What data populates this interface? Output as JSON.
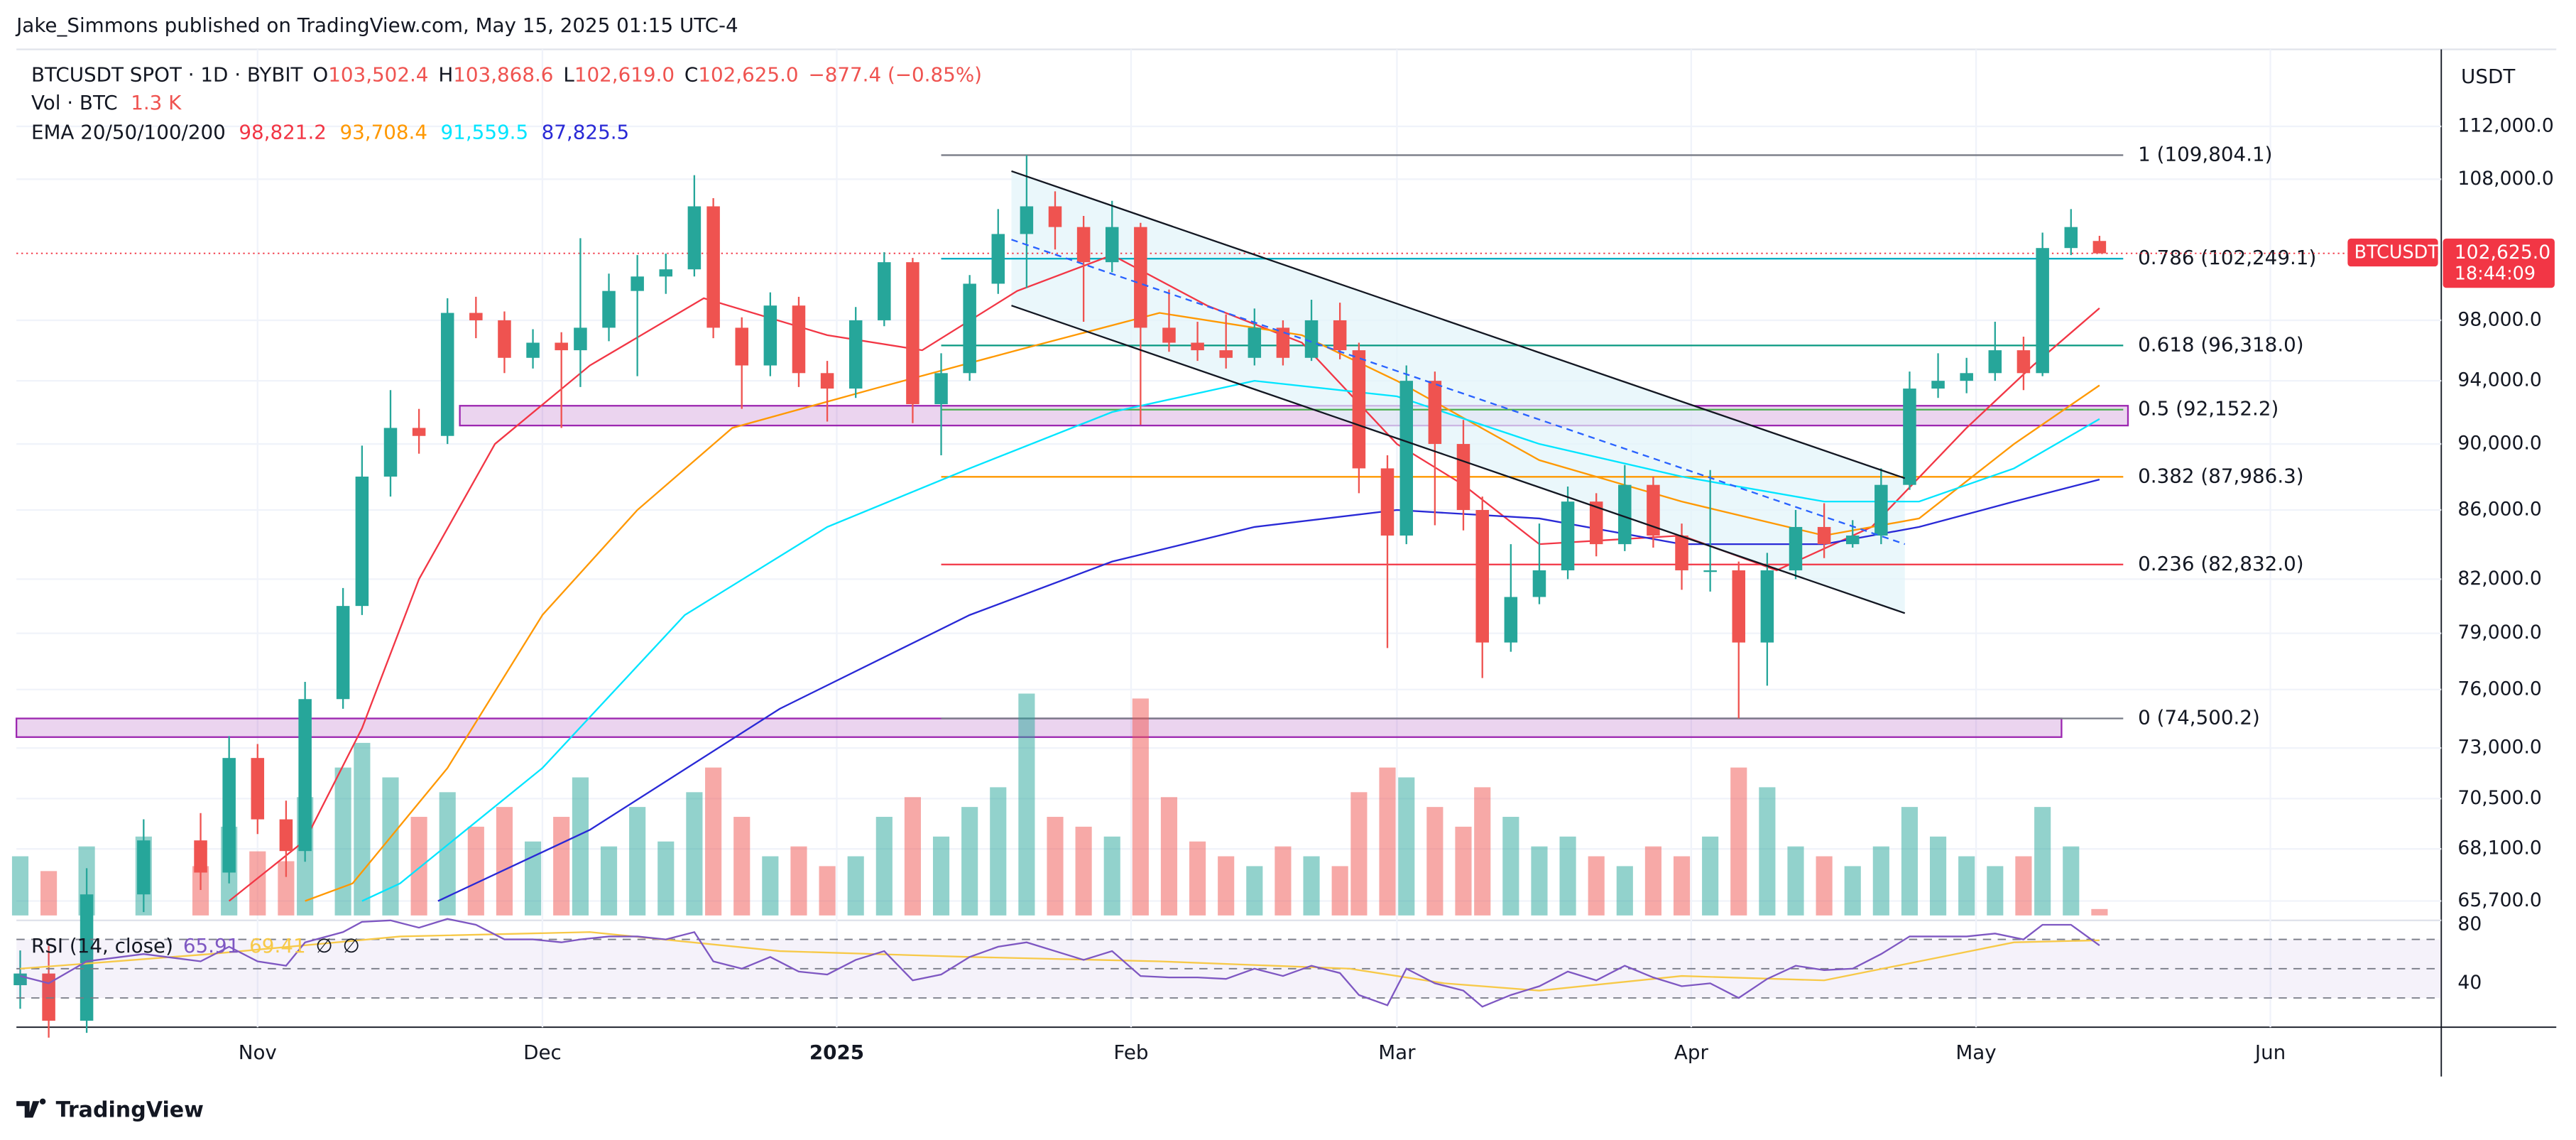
{
  "header": {
    "publisher": "Jake_Simmons published on TradingView.com, May 15, 2025 01:15 UTC-4",
    "brand": "TradingView"
  },
  "chart_data": {
    "type": "candlestick",
    "symbol": "BTCUSDT SPOT · 1D · BYBIT",
    "ohlc_legend": [
      {
        "key": "O",
        "text": "103,502.4"
      },
      {
        "key": "H",
        "text": "103,868.6"
      },
      {
        "key": "L",
        "text": "102,619.0"
      },
      {
        "key": "C",
        "text": "102,625.0"
      }
    ],
    "change": "−877.4 (−0.85%)",
    "volume_legend": {
      "label": "Vol · BTC",
      "text": "1.3 K"
    },
    "ema_legend": "EMA 20/50/100/200",
    "currency": "USDT",
    "up_color": "#26a69a",
    "down_color": "#ef5350",
    "x": [
      0,
      3,
      7,
      13,
      19,
      22,
      25,
      28,
      30,
      34,
      36,
      39,
      42,
      45,
      48,
      51,
      54,
      57,
      59,
      62,
      65,
      68,
      71,
      73,
      76,
      79,
      82,
      85,
      88,
      91,
      94,
      97,
      100,
      103,
      106,
      109,
      112,
      115,
      118,
      121,
      124,
      127,
      130,
      133,
      136,
      139,
      141,
      144,
      146,
      149,
      152,
      154,
      157,
      160,
      163,
      166,
      169,
      172,
      175,
      178,
      181,
      184,
      187,
      190,
      193,
      196,
      199,
      202,
      205,
      208,
      211,
      213,
      216,
      219
    ],
    "open": [
      62000,
      62500,
      60500,
      66000,
      68500,
      67000,
      72500,
      69500,
      68000,
      75500,
      80500,
      88000,
      91000,
      90500,
      98500,
      98000,
      95500,
      96500,
      96000,
      97500,
      100000,
      101000,
      101500,
      106000,
      97500,
      95000,
      99000,
      94500,
      93500,
      98000,
      102000,
      92500,
      94500,
      100500,
      104000,
      106000,
      104500,
      102000,
      104500,
      97500,
      96500,
      96000,
      95500,
      97500,
      95500,
      98000,
      96000,
      88500,
      84500,
      94000,
      90000,
      86000,
      78500,
      81000,
      82500,
      86500,
      84000,
      87500,
      84500,
      82500,
      82500,
      78500,
      82500,
      85000,
      84000,
      84500,
      87500,
      93500,
      94000,
      94500,
      96000,
      94500,
      103000,
      103502.4
    ],
    "high": [
      63500,
      63700,
      67200,
      69500,
      69800,
      73600,
      73200,
      70400,
      76400,
      81500,
      89900,
      93400,
      92200,
      99500,
      99600,
      98600,
      97400,
      97200,
      103700,
      101200,
      102500,
      102600,
      108300,
      106600,
      98200,
      99900,
      99600,
      95300,
      98900,
      102700,
      102300,
      95800,
      101100,
      105800,
      109800,
      107100,
      105300,
      106400,
      104800,
      100100,
      97900,
      98400,
      98800,
      98000,
      99400,
      99200,
      96500,
      89300,
      95000,
      94600,
      91500,
      86800,
      84000,
      85200,
      87400,
      87000,
      88700,
      88000,
      85200,
      88400,
      83000,
      83500,
      86000,
      86400,
      85400,
      88500,
      94600,
      95800,
      95500,
      97900,
      96900,
      104100,
      105800,
      103868.6
    ],
    "low": [
      61000,
      59800,
      60000,
      65200,
      66200,
      66500,
      68800,
      66800,
      67500,
      75000,
      80000,
      86800,
      89400,
      90000,
      96800,
      94500,
      94800,
      91000,
      93600,
      96600,
      94300,
      99800,
      101000,
      96800,
      92200,
      94300,
      93600,
      91400,
      92900,
      97600,
      91300,
      89300,
      94000,
      99800,
      100200,
      102900,
      97900,
      101300,
      91200,
      95900,
      95300,
      94800,
      95000,
      95000,
      95300,
      95400,
      87000,
      78200,
      84000,
      85100,
      84800,
      76600,
      78000,
      80600,
      82000,
      83300,
      83600,
      83800,
      81400,
      81300,
      74500,
      76200,
      82000,
      83200,
      83800,
      84000,
      87200,
      92900,
      93200,
      94000,
      93400,
      94300,
      102500,
      102619
    ],
    "close": [
      62500,
      60500,
      66000,
      68500,
      67000,
      72500,
      69500,
      68000,
      75500,
      80500,
      88000,
      91000,
      90500,
      98500,
      98000,
      95500,
      96500,
      96000,
      97500,
      100000,
      101000,
      101500,
      106000,
      97500,
      95000,
      99000,
      94500,
      93500,
      98000,
      102000,
      92500,
      94500,
      100500,
      104000,
      106000,
      104500,
      102000,
      104500,
      97500,
      96500,
      96000,
      95500,
      97500,
      95500,
      98000,
      96000,
      88500,
      84500,
      94000,
      90000,
      86000,
      78500,
      81000,
      82500,
      86500,
      84000,
      87500,
      84500,
      82500,
      82500,
      78500,
      82500,
      85000,
      84000,
      84500,
      87500,
      93500,
      94000,
      94500,
      96000,
      94500,
      103000,
      104500,
      102625
    ],
    "volume": [
      12,
      9,
      14,
      16,
      10,
      18,
      13,
      11,
      24,
      30,
      35,
      28,
      20,
      25,
      18,
      22,
      15,
      20,
      28,
      14,
      22,
      15,
      25,
      30,
      20,
      12,
      14,
      10,
      12,
      20,
      24,
      16,
      22,
      26,
      45,
      20,
      18,
      16,
      44,
      24,
      15,
      12,
      10,
      14,
      12,
      10,
      25,
      30,
      28,
      22,
      18,
      26,
      20,
      14,
      16,
      12,
      10,
      14,
      12,
      16,
      30,
      26,
      14,
      12,
      10,
      14,
      22,
      16,
      12,
      10,
      12,
      22,
      14,
      1.3
    ],
    "xlim": [
      -0.4,
      255
    ],
    "xticks": [
      {
        "value": 25,
        "label": "Nov"
      },
      {
        "value": 55,
        "label": "Dec"
      },
      {
        "value": 86,
        "label": "2025"
      },
      {
        "value": 117,
        "label": "Feb"
      },
      {
        "value": 145,
        "label": "Mar"
      },
      {
        "value": 176,
        "label": "Apr"
      },
      {
        "value": 206,
        "label": "May"
      },
      {
        "value": 237,
        "label": "Jun"
      }
    ],
    "ylim": [
      65050,
      118100
    ],
    "log_scale": true,
    "grid": true,
    "yticks": [
      {
        "value": 112000,
        "label": "112,000.0"
      },
      {
        "value": 108000,
        "label": "108,000.0"
      },
      {
        "value": 98000,
        "label": "98,000.0"
      },
      {
        "value": 94000,
        "label": "94,000.0"
      },
      {
        "value": 90000,
        "label": "90,000.0"
      },
      {
        "value": 86000,
        "label": "86,000.0"
      },
      {
        "value": 82000,
        "label": "82,000.0"
      },
      {
        "value": 79000,
        "label": "79,000.0"
      },
      {
        "value": 76000,
        "label": "76,000.0"
      },
      {
        "value": 73000,
        "label": "73,000.0"
      },
      {
        "value": 70500,
        "label": "70,500.0"
      },
      {
        "value": 68100,
        "label": "68,100.0"
      },
      {
        "value": 65700,
        "label": "65,700.0"
      }
    ],
    "ema": [
      {
        "color": "#f23645",
        "value_label": "98,821.2",
        "x": [
          22,
          30,
          36,
          42,
          50,
          60,
          72,
          85,
          95,
          105,
          115,
          125,
          135,
          145,
          152,
          160,
          175,
          185,
          195,
          205,
          212,
          219
        ],
        "values": [
          65700,
          68500,
          74000,
          82000,
          90000,
          95000,
          99500,
          97000,
          96000,
          100000,
          102500,
          99000,
          96500,
          90000,
          87500,
          84000,
          84500,
          82500,
          85000,
          91000,
          95000,
          98821.2
        ]
      },
      {
        "color": "#ff9800",
        "value_label": "93,708.4",
        "x": [
          30,
          35,
          45,
          55,
          65,
          75,
          90,
          105,
          120,
          135,
          145,
          160,
          175,
          190,
          200,
          210,
          219
        ],
        "values": [
          65700,
          66500,
          72000,
          80000,
          86000,
          91000,
          93500,
          96000,
          98500,
          97000,
          94000,
          89000,
          86500,
          84500,
          85500,
          90000,
          93708.4
        ]
      },
      {
        "color": "#00e5ff",
        "value_label": "91,559.5",
        "x": [
          36,
          40,
          55,
          70,
          85,
          100,
          115,
          130,
          145,
          160,
          175,
          190,
          200,
          210,
          219
        ],
        "values": [
          65700,
          66500,
          72000,
          80000,
          85000,
          88500,
          92000,
          94000,
          93000,
          90000,
          88000,
          86500,
          86500,
          88500,
          91559.5
        ]
      },
      {
        "color": "#2929d6",
        "value_label": "87,825.5",
        "x": [
          44,
          60,
          80,
          100,
          115,
          130,
          145,
          160,
          175,
          190,
          200,
          210,
          219
        ],
        "values": [
          65700,
          69000,
          75000,
          80000,
          83000,
          85000,
          86000,
          85500,
          84000,
          84000,
          85000,
          86500,
          87825.5
        ]
      }
    ],
    "last_price": {
      "symbol": "BTCUSDT",
      "label": "102,625.0",
      "countdown": "18:44:09",
      "color": "#f23645"
    },
    "fib_range": [
      97,
      221.5
    ],
    "fib": [
      {
        "value": 109804.1,
        "label": "1 (109,804.1)",
        "color": "#787b86"
      },
      {
        "value": 102249.1,
        "label": "0.786 (102,249.1)",
        "color": "#00acc1"
      },
      {
        "value": 96318.0,
        "label": "0.618 (96,318.0)",
        "color": "#089981"
      },
      {
        "value": 92152.2,
        "label": "0.5 (92,152.2)",
        "color": "#4caf50"
      },
      {
        "value": 87986.3,
        "label": "0.382 (87,986.3)",
        "color": "#ff9800"
      },
      {
        "value": 82832.0,
        "label": "0.236 (82,832.0)",
        "color": "#f23645"
      },
      {
        "value": 74500.2,
        "label": "0 (74,500.2)",
        "color": "#787b86"
      }
    ],
    "zones": [
      {
        "from": 46.3,
        "to": 222,
        "low": 91150,
        "high": 92400
      },
      {
        "from": -0.4,
        "to": 215,
        "low": 73550,
        "high": 74500
      }
    ],
    "zone_color": "#9c27b0",
    "channel": {
      "upper": [
        [
          104.4,
          108600
        ],
        [
          198.5,
          87900
        ]
      ],
      "lower": [
        [
          104.4,
          99000
        ],
        [
          198.5,
          80100
        ]
      ],
      "middle": [
        [
          104.4,
          103600
        ],
        [
          198.5,
          84000
        ]
      ],
      "fill": "#e1f3fa",
      "color": "#131722",
      "middle_color": "#2962ff"
    }
  },
  "rsi": {
    "title": "RSI (14, close)",
    "value_label": "65.91",
    "ma_label": "69.41",
    "na": [
      "∅",
      "∅"
    ],
    "color": "#7e57c2",
    "values": [
      45,
      40,
      55,
      60,
      55,
      65,
      55,
      52,
      68,
      75,
      82,
      83,
      78,
      84,
      80,
      70,
      70,
      68,
      70,
      72,
      72,
      70,
      75,
      55,
      50,
      58,
      48,
      46,
      56,
      62,
      42,
      46,
      58,
      65,
      68,
      62,
      56,
      62,
      45,
      44,
      44,
      43,
      50,
      45,
      52,
      47,
      32,
      25,
      50,
      40,
      35,
      24,
      32,
      38,
      48,
      42,
      52,
      44,
      38,
      40,
      30,
      43,
      52,
      49,
      50,
      60,
      72,
      72,
      72,
      74,
      70,
      80,
      80,
      65.91
    ],
    "ma": {
      "color": "#f7c948",
      "x": [
        0,
        20,
        40,
        60,
        80,
        100,
        120,
        140,
        150,
        160,
        175,
        190,
        200,
        210,
        219
      ],
      "values": [
        50,
        60,
        72,
        75,
        62,
        58,
        55,
        50,
        40,
        35,
        45,
        42,
        55,
        68,
        69.41
      ]
    },
    "ylim": [
      10,
      83
    ],
    "yticks": [
      80,
      40
    ],
    "bands": [
      70,
      50,
      30
    ]
  }
}
